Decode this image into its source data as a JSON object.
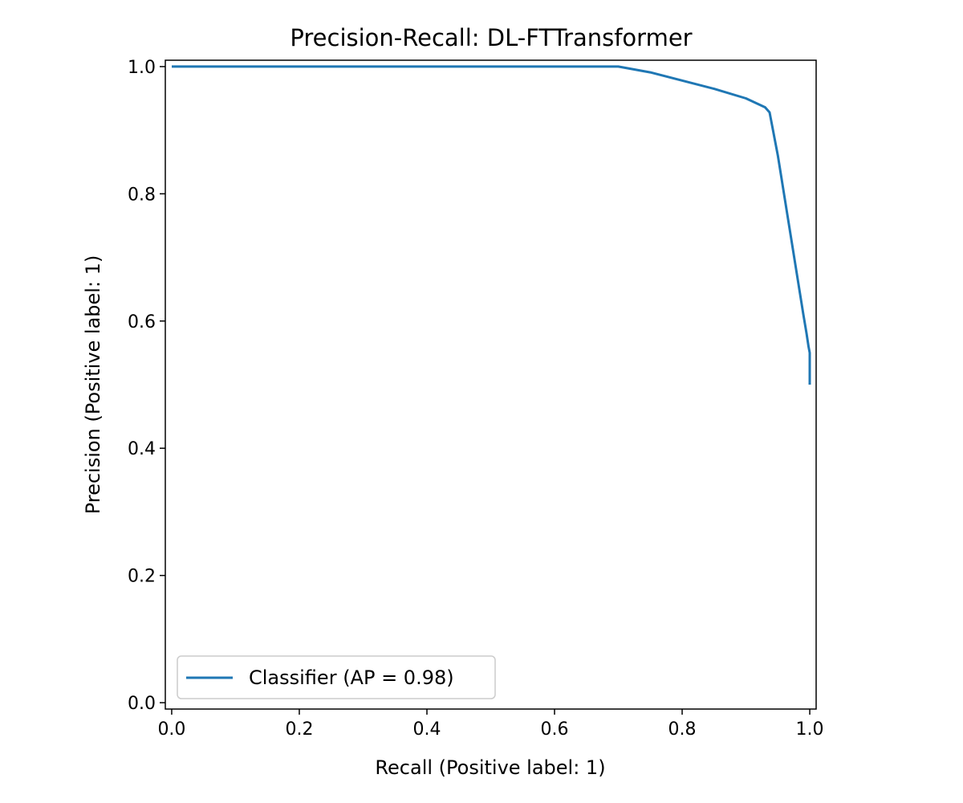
{
  "chart_data": {
    "type": "line",
    "title": "Precision-Recall: DL-FTTransformer",
    "xlabel": "Recall (Positive label: 1)",
    "ylabel": "Precision (Positive label: 1)",
    "xlim": [
      -0.01,
      1.01
    ],
    "ylim": [
      -0.01,
      1.01
    ],
    "xticks": [
      "0.0",
      "0.2",
      "0.4",
      "0.6",
      "0.8",
      "1.0"
    ],
    "yticks": [
      "0.0",
      "0.2",
      "0.4",
      "0.6",
      "0.8",
      "1.0"
    ],
    "grid": false,
    "legend_position": "lower-left",
    "series": [
      {
        "name": "Classifier (AP = 0.98)",
        "color": "#1f77b4",
        "x": [
          0.0,
          0.7,
          0.75,
          0.8,
          0.85,
          0.9,
          0.93,
          0.937,
          0.95,
          0.97,
          0.99,
          0.995,
          0.998,
          1.0,
          1.0
        ],
        "y": [
          1.0,
          1.0,
          0.991,
          0.978,
          0.965,
          0.95,
          0.936,
          0.928,
          0.86,
          0.735,
          0.61,
          0.58,
          0.56,
          0.55,
          0.5
        ]
      }
    ]
  }
}
